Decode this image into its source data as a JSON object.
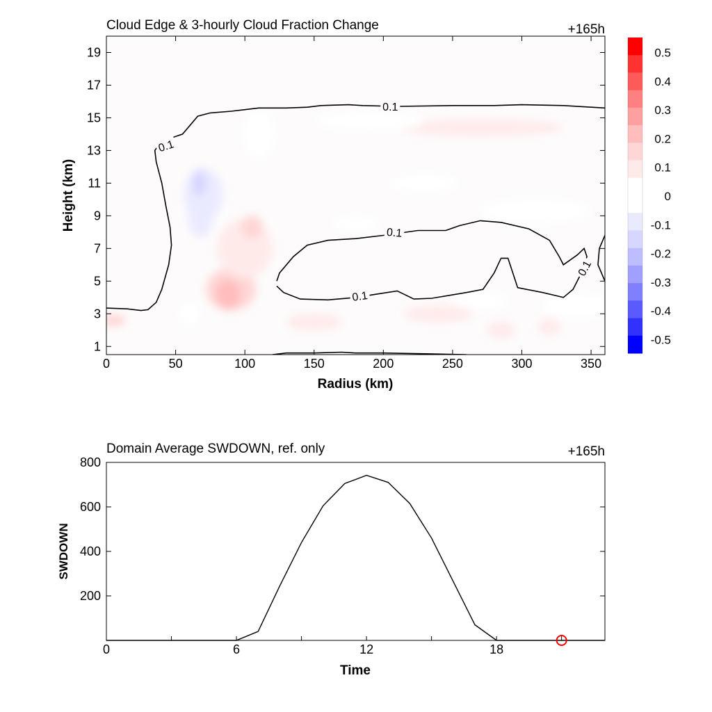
{
  "top_panel": {
    "title": "Cloud Edge & 3-hourly Cloud Fraction Change",
    "time_label": "+165h"
  },
  "bottom_panel": {
    "title": "Domain Average SWDOWN, ref. only",
    "time_label": "+165h"
  },
  "chart_data": [
    {
      "type": "heatmap",
      "title": "Cloud Edge & 3-hourly Cloud Fraction Change",
      "xlabel": "Radius (km)",
      "ylabel": "Height (km)",
      "xlim": [
        0,
        360
      ],
      "ylim": [
        0.5,
        20
      ],
      "xticks": [
        0,
        50,
        100,
        150,
        200,
        250,
        300,
        350
      ],
      "yticks": [
        1,
        3,
        5,
        7,
        9,
        11,
        13,
        15,
        17,
        19
      ],
      "colorbar": {
        "range": [
          -0.55,
          0.55
        ],
        "ticks": [
          0.5,
          0.4,
          0.3,
          0.2,
          0.1,
          0,
          -0.1,
          -0.2,
          -0.3,
          -0.4,
          -0.5
        ],
        "colors": [
          "#ff0000",
          "#ff3232",
          "#ff5a5a",
          "#ff8080",
          "#ffa0a0",
          "#ffbdbd",
          "#ffd6d6",
          "#ffeaea",
          "#ffffff",
          "#ffffff",
          "#eaeaff",
          "#d6d6ff",
          "#bdbdff",
          "#a0a0ff",
          "#8080ff",
          "#5a5aff",
          "#3232ff",
          "#0000ff"
        ]
      },
      "anomalies": [
        {
          "x": 90,
          "y": 4.5,
          "rx": 18,
          "ry": 1.3,
          "value": 0.16
        },
        {
          "x": 88,
          "y": 4.2,
          "rx": 9,
          "ry": 0.9,
          "value": 0.22
        },
        {
          "x": 100,
          "y": 7.0,
          "rx": 20,
          "ry": 1.8,
          "value": 0.08
        },
        {
          "x": 105,
          "y": 8.3,
          "rx": 8,
          "ry": 0.7,
          "value": 0.14
        },
        {
          "x": 70,
          "y": 10.3,
          "rx": 14,
          "ry": 1.6,
          "value": -0.1
        },
        {
          "x": 68,
          "y": 9.0,
          "rx": 9,
          "ry": 1.3,
          "value": -0.08
        },
        {
          "x": 67,
          "y": 11.0,
          "rx": 5,
          "ry": 0.8,
          "value": -0.16
        },
        {
          "x": 5,
          "y": 2.6,
          "rx": 9,
          "ry": 0.35,
          "value": 0.16
        },
        {
          "x": 270,
          "y": 14.4,
          "rx": 60,
          "ry": 0.5,
          "value": 0.1
        },
        {
          "x": 190,
          "y": 14.8,
          "rx": 40,
          "ry": 0.6,
          "value": 0.06
        },
        {
          "x": 110,
          "y": 14.0,
          "rx": 12,
          "ry": 1.5,
          "value": 0.05
        },
        {
          "x": 240,
          "y": 3.0,
          "rx": 25,
          "ry": 0.5,
          "value": 0.1
        },
        {
          "x": 150,
          "y": 2.5,
          "rx": 20,
          "ry": 0.5,
          "value": 0.07
        },
        {
          "x": 270,
          "y": 3.8,
          "rx": 20,
          "ry": 0.6,
          "value": 0.05
        },
        {
          "x": 340,
          "y": 3.5,
          "rx": 25,
          "ry": 0.8,
          "value": 0.05
        },
        {
          "x": 310,
          "y": 9.3,
          "rx": 40,
          "ry": 0.8,
          "value": 0.04
        },
        {
          "x": 230,
          "y": 11.0,
          "rx": 25,
          "ry": 0.6,
          "value": -0.05
        },
        {
          "x": 60,
          "y": 3.0,
          "rx": 8,
          "ry": 0.8,
          "value": -0.05
        },
        {
          "x": 285,
          "y": 2.0,
          "rx": 10,
          "ry": 0.5,
          "value": 0.12
        },
        {
          "x": 320,
          "y": 2.2,
          "rx": 8,
          "ry": 0.5,
          "value": 0.08
        },
        {
          "x": 180,
          "y": 8.5,
          "rx": 18,
          "ry": 0.5,
          "value": -0.05
        }
      ],
      "contours": [
        {
          "label": "0.1",
          "value": 0.1,
          "points": [
            [
              0,
              3.35
            ],
            [
              15,
              3.3
            ],
            [
              25,
              3.2
            ],
            [
              30,
              3.25
            ],
            [
              36,
              3.7
            ],
            [
              40,
              4.5
            ],
            [
              45,
              6.0
            ],
            [
              47,
              7.2
            ],
            [
              46,
              8.3
            ],
            [
              43,
              9.6
            ],
            [
              40,
              11
            ],
            [
              36,
              12.3
            ],
            [
              35,
              13
            ],
            [
              40,
              13.6
            ],
            [
              48,
              13.8
            ],
            [
              55,
              14.0
            ],
            [
              60,
              14.5
            ],
            [
              66,
              15.1
            ],
            [
              75,
              15.3
            ],
            [
              90,
              15.4
            ],
            [
              100,
              15.5
            ],
            [
              110,
              15.6
            ],
            [
              130,
              15.6
            ],
            [
              145,
              15.65
            ],
            [
              155,
              15.75
            ],
            [
              175,
              15.8
            ],
            [
              185,
              15.75
            ],
            [
              210,
              15.7
            ],
            [
              250,
              15.75
            ],
            [
              280,
              15.75
            ],
            [
              300,
              15.8
            ],
            [
              330,
              15.75
            ],
            [
              360,
              15.6
            ]
          ]
        },
        {
          "label": "0.1",
          "value": 0.1,
          "points": [
            [
              123,
              4.7
            ],
            [
              128,
              4.3
            ],
            [
              140,
              3.9
            ],
            [
              160,
              3.85
            ],
            [
              180,
              4.0
            ],
            [
              195,
              4.2
            ],
            [
              210,
              4.4
            ],
            [
              222,
              3.9
            ],
            [
              235,
              3.95
            ],
            [
              260,
              4.3
            ],
            [
              272,
              4.5
            ],
            [
              280,
              5.5
            ],
            [
              285,
              6.4
            ],
            [
              290,
              6.4
            ],
            [
              297,
              4.6
            ],
            [
              315,
              4.3
            ],
            [
              325,
              4.1
            ],
            [
              330,
              4.0
            ],
            [
              337,
              4.5
            ],
            [
              343,
              5.5
            ],
            [
              347,
              6.5
            ],
            [
              345,
              7.0
            ],
            [
              340,
              6.6
            ],
            [
              335,
              6.3
            ],
            [
              330,
              6.0
            ],
            [
              327,
              6.5
            ],
            [
              320,
              7.5
            ],
            [
              305,
              8.2
            ],
            [
              285,
              8.6
            ],
            [
              270,
              8.7
            ],
            [
              255,
              8.4
            ],
            [
              245,
              8.1
            ],
            [
              225,
              8.1
            ],
            [
              200,
              7.8
            ],
            [
              180,
              7.6
            ],
            [
              160,
              7.5
            ],
            [
              145,
              7.2
            ],
            [
              135,
              6.5
            ],
            [
              125,
              5.5
            ],
            [
              123,
              5.0
            ]
          ]
        },
        {
          "label": "",
          "value": 0.1,
          "points": [
            [
              360,
              5.0
            ],
            [
              355,
              6.0
            ],
            [
              356,
              7.0
            ],
            [
              360,
              7.8
            ]
          ]
        },
        {
          "label": "",
          "value": 0.1,
          "points": [
            [
              120,
              0.5
            ],
            [
              130,
              0.6
            ],
            [
              150,
              0.6
            ],
            [
              170,
              0.65
            ],
            [
              180,
              0.6
            ],
            [
              200,
              0.6
            ],
            [
              230,
              0.55
            ],
            [
              260,
              0.5
            ]
          ]
        }
      ],
      "contour_labels": [
        {
          "text": "0.1",
          "x": 43,
          "y": 13.3,
          "angle": -18
        },
        {
          "text": "0.1",
          "x": 205,
          "y": 15.7,
          "angle": 0
        },
        {
          "text": "0.1",
          "x": 208,
          "y": 8.0,
          "angle": 5
        },
        {
          "text": "0.1",
          "x": 183,
          "y": 4.1,
          "angle": -8
        },
        {
          "text": "0.1",
          "x": 345,
          "y": 5.8,
          "angle": -62
        }
      ]
    },
    {
      "type": "line",
      "title": "Domain Average SWDOWN, ref. only",
      "xlabel": "Time",
      "ylabel": "SWDOWN",
      "xlim": [
        0,
        23
      ],
      "ylim": [
        0,
        800
      ],
      "xticks": [
        0,
        6,
        12,
        18
      ],
      "yticks": [
        200,
        400,
        600,
        800
      ],
      "x": [
        0,
        1,
        2,
        3,
        4,
        5,
        6,
        7,
        8,
        9,
        10,
        11,
        12,
        13,
        14,
        15,
        16,
        17,
        18,
        19,
        20,
        21,
        22,
        23
      ],
      "series": [
        {
          "values": [
            0,
            0,
            0,
            0,
            0,
            0,
            0,
            40,
            245,
            440,
            605,
            705,
            742,
            710,
            615,
            460,
            265,
            70,
            0,
            0,
            0,
            0,
            0,
            0
          ],
          "color": "#000000"
        }
      ],
      "marker": {
        "x": 21,
        "y": 0,
        "color": "#ff0000",
        "shape": "circle"
      }
    }
  ]
}
